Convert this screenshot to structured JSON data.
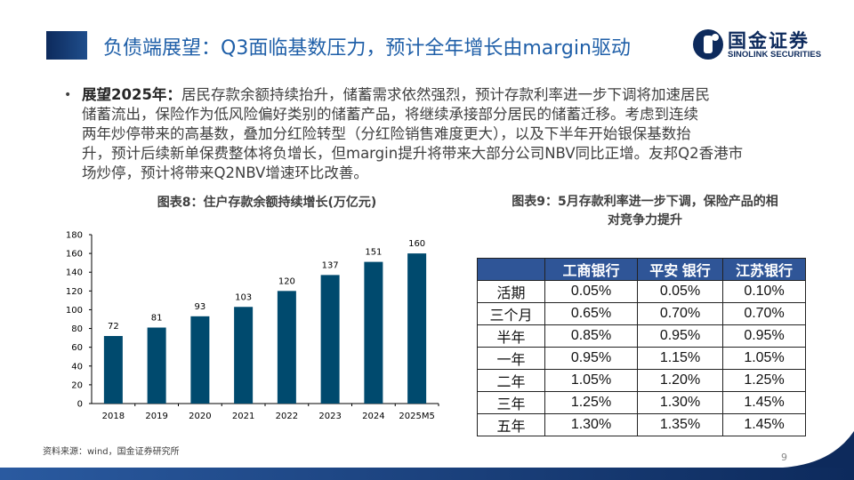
{
  "header": {
    "title": "负债端展望：Q3面临基数压力，预计全年增长由margin驱动",
    "logo_cn": "国金证券",
    "logo_en": "SINOLINK SECURITIES"
  },
  "bullet": {
    "lead": "展望2025年：",
    "lines": [
      "居民存款余额持续抬升，储蓄需求依然强烈，预计存款利率进一步下调将加速居民",
      "储蓄流出，保险作为低风险偏好类别的储蓄产品，将继续承接部分居民的储蓄迁移。考虑到连续",
      "两年炒停带来的高基数，叠加分红险转型（分红险销售难度更大），以及下半年开始银保基数抬",
      "升，预计后续新单保费整体将负增长，但margin提升将带来大部分公司NBV同比正增。友邦Q2香港市",
      "场炒停，预计将带来Q2NBV增速环比改善。"
    ]
  },
  "chart_data": {
    "type": "bar",
    "title": "图表8：住户存款余额持续增长(万亿元)",
    "categories": [
      "2018",
      "2019",
      "2020",
      "2021",
      "2022",
      "2023",
      "2024",
      "2025M5"
    ],
    "values": [
      72,
      81,
      93,
      103,
      120,
      137,
      151,
      160
    ],
    "ylim": [
      0,
      180
    ],
    "yticks": [
      0,
      20,
      40,
      60,
      80,
      100,
      120,
      140,
      160,
      180
    ],
    "bar_color": "#004a6e",
    "grid": false
  },
  "table": {
    "title_line1": "图表9：5月存款利率进一步下调，保险产品的相",
    "title_line2": "对竞争力提升",
    "headers": [
      "",
      "工商银行",
      "平安 银行",
      "江苏银行"
    ],
    "rows": [
      [
        "活期",
        "0.05%",
        "0.05%",
        "0.10%"
      ],
      [
        "三个月",
        "0.65%",
        "0.70%",
        "0.70%"
      ],
      [
        "半年",
        "0.85%",
        "0.95%",
        "0.95%"
      ],
      [
        "一年",
        "0.95%",
        "1.15%",
        "1.05%"
      ],
      [
        "二年",
        "1.05%",
        "1.20%",
        "1.25%"
      ],
      [
        "三年",
        "1.25%",
        "1.30%",
        "1.45%"
      ],
      [
        "五年",
        "1.30%",
        "1.35%",
        "1.45%"
      ]
    ],
    "header_color": "#2f5597"
  },
  "footer": {
    "source": "资料来源：wind，国金证券研究所",
    "page": "9"
  }
}
